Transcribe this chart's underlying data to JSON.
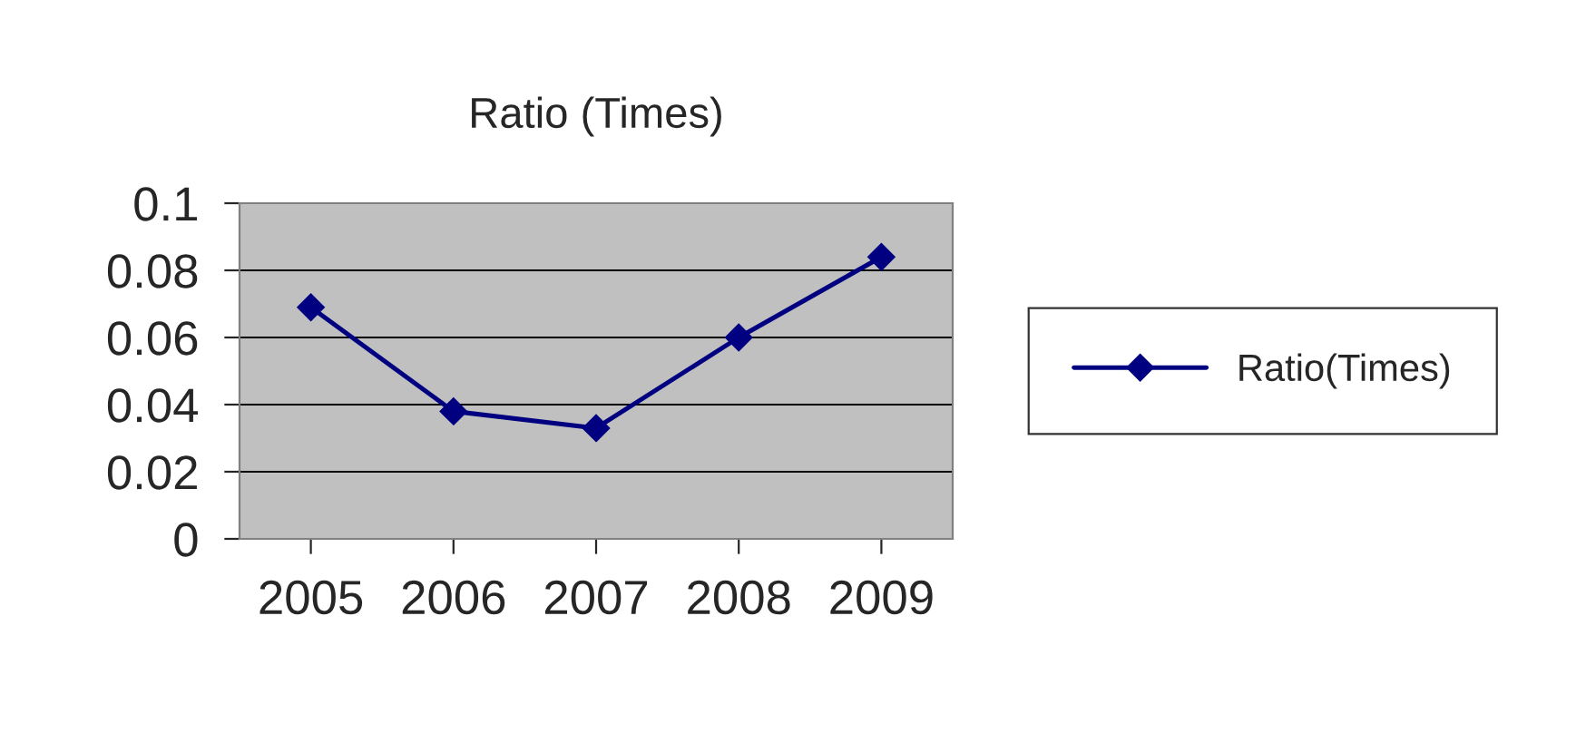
{
  "chart_data": {
    "type": "line",
    "title": "Ratio (Times)",
    "categories": [
      "2005",
      "2006",
      "2007",
      "2008",
      "2009"
    ],
    "series": [
      {
        "name": "Ratio(Times)",
        "color": "#000080",
        "values": [
          0.069,
          0.038,
          0.033,
          0.06,
          0.084
        ]
      }
    ],
    "ylim": [
      0,
      0.1
    ],
    "yticks": [
      0,
      0.02,
      0.04,
      0.06,
      0.08,
      0.1
    ],
    "grid": "y",
    "legend": "right",
    "marker": "diamond",
    "line_style": "solid"
  }
}
